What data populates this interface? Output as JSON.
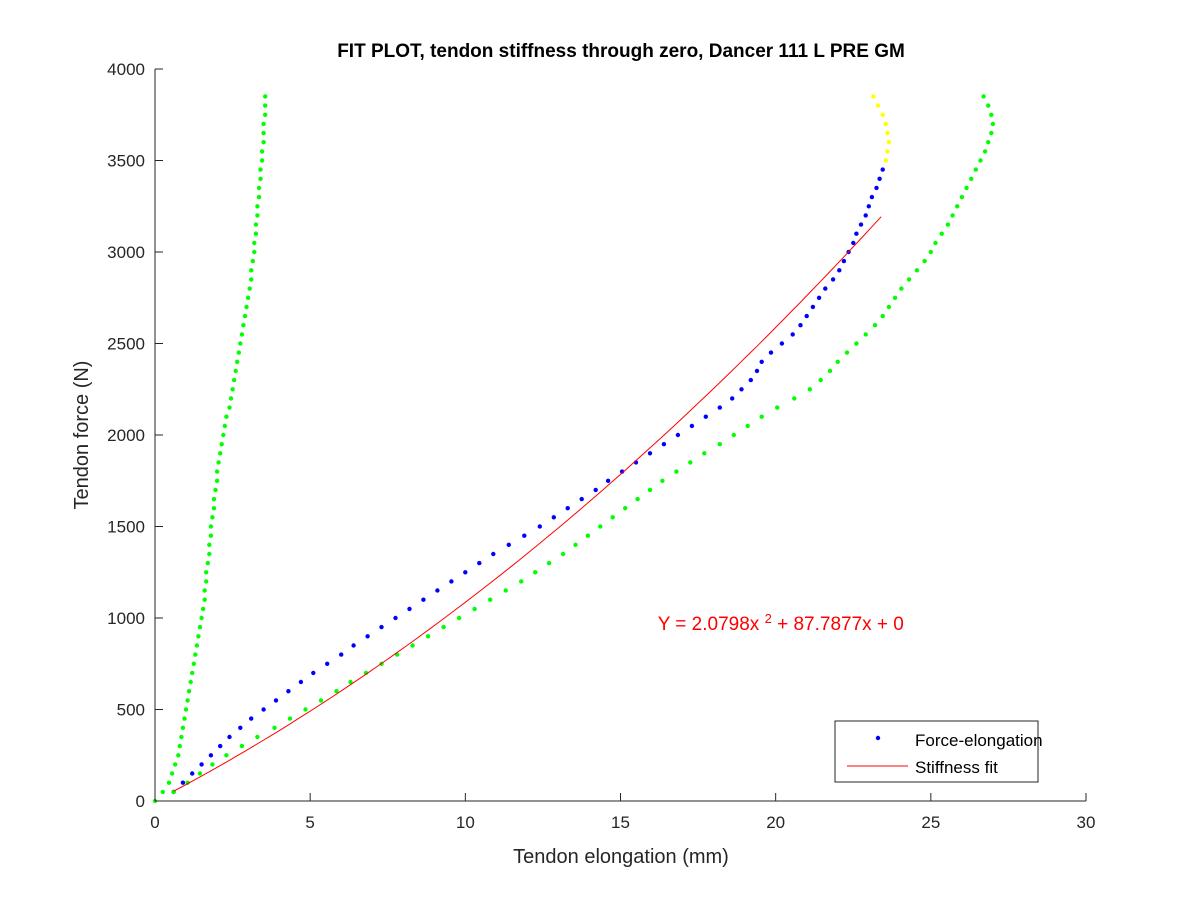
{
  "chart_data": {
    "type": "scatter",
    "title": "FIT PLOT, tendon stiffness through zero, Dancer 111 L PRE GM",
    "xlabel": "Tendon elongation (mm)",
    "ylabel": "Tendon force (N)",
    "xlim": [
      0,
      30
    ],
    "ylim": [
      0,
      4000
    ],
    "x_ticks": [
      "0",
      "5",
      "10",
      "15",
      "20",
      "25",
      "30"
    ],
    "y_ticks": [
      "0",
      "500",
      "1000",
      "1500",
      "2000",
      "2500",
      "3000",
      "3500",
      "4000"
    ],
    "grid": false,
    "legend_position": "bottom-right",
    "legend": [
      "Force-elongation",
      "Stiffness fit"
    ],
    "annotation": {
      "prefix": "Y = 2.0798x",
      "superscript": "2",
      "suffix": " + 87.7877x + 0",
      "at": [
        16.2,
        935
      ]
    },
    "fit": {
      "a": 2.0798,
      "b": 87.7877,
      "c": 0,
      "x_range": [
        0.6,
        23.4
      ]
    },
    "colors": {
      "force_elongation": "#0000ff",
      "stiffness_fit": "#ff0000",
      "annotation": "#ff0000",
      "green_series": "#00ff00",
      "yellow_series": "#ffff00"
    },
    "series": [
      {
        "name": "Force-elongation",
        "marker": "dot",
        "color": "#0000ff",
        "points": [
          [
            0.6,
            50
          ],
          [
            0.9,
            100
          ],
          [
            1.2,
            150
          ],
          [
            1.5,
            200
          ],
          [
            1.8,
            250
          ],
          [
            2.1,
            300
          ],
          [
            2.4,
            350
          ],
          [
            2.75,
            400
          ],
          [
            3.1,
            450
          ],
          [
            3.5,
            500
          ],
          [
            3.9,
            550
          ],
          [
            4.3,
            600
          ],
          [
            4.7,
            650
          ],
          [
            5.1,
            700
          ],
          [
            5.55,
            750
          ],
          [
            6.0,
            800
          ],
          [
            6.4,
            850
          ],
          [
            6.85,
            900
          ],
          [
            7.3,
            950
          ],
          [
            7.75,
            1000
          ],
          [
            8.2,
            1050
          ],
          [
            8.65,
            1100
          ],
          [
            9.1,
            1150
          ],
          [
            9.55,
            1200
          ],
          [
            10.0,
            1250
          ],
          [
            10.45,
            1300
          ],
          [
            10.9,
            1350
          ],
          [
            11.4,
            1400
          ],
          [
            11.9,
            1450
          ],
          [
            12.4,
            1500
          ],
          [
            12.85,
            1550
          ],
          [
            13.3,
            1600
          ],
          [
            13.75,
            1650
          ],
          [
            14.2,
            1700
          ],
          [
            14.6,
            1750
          ],
          [
            15.05,
            1800
          ],
          [
            15.5,
            1850
          ],
          [
            15.95,
            1900
          ],
          [
            16.4,
            1950
          ],
          [
            16.85,
            2000
          ],
          [
            17.3,
            2050
          ],
          [
            17.75,
            2100
          ],
          [
            18.2,
            2150
          ],
          [
            18.6,
            2200
          ],
          [
            18.9,
            2250
          ],
          [
            19.2,
            2300
          ],
          [
            19.4,
            2350
          ],
          [
            19.55,
            2400
          ],
          [
            19.85,
            2450
          ],
          [
            20.2,
            2500
          ],
          [
            20.55,
            2550
          ],
          [
            20.8,
            2600
          ],
          [
            21.0,
            2650
          ],
          [
            21.2,
            2700
          ],
          [
            21.4,
            2750
          ],
          [
            21.6,
            2800
          ],
          [
            21.85,
            2850
          ],
          [
            22.05,
            2900
          ],
          [
            22.2,
            2950
          ],
          [
            22.35,
            3000
          ],
          [
            22.5,
            3050
          ],
          [
            22.6,
            3100
          ],
          [
            22.75,
            3150
          ],
          [
            22.9,
            3200
          ],
          [
            23.0,
            3250
          ],
          [
            23.1,
            3300
          ],
          [
            23.25,
            3350
          ],
          [
            23.35,
            3400
          ],
          [
            23.45,
            3450
          ]
        ]
      },
      {
        "name": "",
        "marker": "dot",
        "color": "#ffff00",
        "points": [
          [
            23.55,
            3500
          ],
          [
            23.6,
            3550
          ],
          [
            23.65,
            3600
          ],
          [
            23.6,
            3650
          ],
          [
            23.55,
            3700
          ],
          [
            23.45,
            3750
          ],
          [
            23.3,
            3800
          ],
          [
            23.15,
            3850
          ]
        ]
      },
      {
        "name": "",
        "marker": "dot",
        "color": "#00ff00",
        "points": [
          [
            0.0,
            0
          ],
          [
            0.25,
            50
          ],
          [
            0.45,
            100
          ],
          [
            0.55,
            150
          ],
          [
            0.65,
            200
          ],
          [
            0.75,
            250
          ],
          [
            0.8,
            300
          ],
          [
            0.85,
            350
          ],
          [
            0.9,
            400
          ],
          [
            0.95,
            450
          ],
          [
            1.0,
            500
          ],
          [
            1.05,
            550
          ],
          [
            1.1,
            600
          ],
          [
            1.15,
            650
          ],
          [
            1.2,
            700
          ],
          [
            1.25,
            750
          ],
          [
            1.3,
            800
          ],
          [
            1.35,
            850
          ],
          [
            1.4,
            900
          ],
          [
            1.45,
            950
          ],
          [
            1.5,
            1000
          ],
          [
            1.55,
            1050
          ],
          [
            1.6,
            1100
          ],
          [
            1.6,
            1150
          ],
          [
            1.65,
            1200
          ],
          [
            1.65,
            1250
          ],
          [
            1.7,
            1300
          ],
          [
            1.75,
            1350
          ],
          [
            1.75,
            1400
          ],
          [
            1.8,
            1450
          ],
          [
            1.8,
            1500
          ],
          [
            1.85,
            1550
          ],
          [
            1.9,
            1600
          ],
          [
            1.9,
            1650
          ],
          [
            1.95,
            1700
          ],
          [
            2.0,
            1750
          ],
          [
            2.0,
            1800
          ],
          [
            2.05,
            1850
          ],
          [
            2.1,
            1900
          ],
          [
            2.15,
            1950
          ],
          [
            2.2,
            2000
          ],
          [
            2.25,
            2050
          ],
          [
            2.3,
            2100
          ],
          [
            2.4,
            2150
          ],
          [
            2.45,
            2200
          ],
          [
            2.5,
            2250
          ],
          [
            2.55,
            2300
          ],
          [
            2.6,
            2350
          ],
          [
            2.65,
            2400
          ],
          [
            2.7,
            2450
          ],
          [
            2.75,
            2500
          ],
          [
            2.8,
            2550
          ],
          [
            2.85,
            2600
          ],
          [
            2.9,
            2650
          ],
          [
            2.95,
            2700
          ],
          [
            3.0,
            2750
          ],
          [
            3.05,
            2800
          ],
          [
            3.1,
            2850
          ],
          [
            3.1,
            2900
          ],
          [
            3.15,
            2950
          ],
          [
            3.2,
            3000
          ],
          [
            3.2,
            3050
          ],
          [
            3.25,
            3100
          ],
          [
            3.25,
            3150
          ],
          [
            3.3,
            3200
          ],
          [
            3.3,
            3250
          ],
          [
            3.35,
            3300
          ],
          [
            3.35,
            3350
          ],
          [
            3.4,
            3400
          ],
          [
            3.4,
            3450
          ],
          [
            3.45,
            3500
          ],
          [
            3.45,
            3550
          ],
          [
            3.5,
            3600
          ],
          [
            3.5,
            3650
          ],
          [
            3.5,
            3700
          ],
          [
            3.55,
            3750
          ],
          [
            3.55,
            3800
          ],
          [
            3.55,
            3850
          ]
        ]
      },
      {
        "name": "",
        "marker": "dot",
        "color": "#00ff00",
        "points": [
          [
            0.6,
            50
          ],
          [
            1.05,
            100
          ],
          [
            1.45,
            150
          ],
          [
            1.85,
            200
          ],
          [
            2.3,
            250
          ],
          [
            2.8,
            300
          ],
          [
            3.3,
            350
          ],
          [
            3.85,
            400
          ],
          [
            4.35,
            450
          ],
          [
            4.85,
            500
          ],
          [
            5.35,
            550
          ],
          [
            5.85,
            600
          ],
          [
            6.3,
            650
          ],
          [
            6.8,
            700
          ],
          [
            7.3,
            750
          ],
          [
            7.8,
            800
          ],
          [
            8.3,
            850
          ],
          [
            8.8,
            900
          ],
          [
            9.3,
            950
          ],
          [
            9.8,
            1000
          ],
          [
            10.3,
            1050
          ],
          [
            10.8,
            1100
          ],
          [
            11.3,
            1150
          ],
          [
            11.8,
            1200
          ],
          [
            12.25,
            1250
          ],
          [
            12.7,
            1300
          ],
          [
            13.15,
            1350
          ],
          [
            13.55,
            1400
          ],
          [
            13.95,
            1450
          ],
          [
            14.35,
            1500
          ],
          [
            14.75,
            1550
          ],
          [
            15.15,
            1600
          ],
          [
            15.55,
            1650
          ],
          [
            15.95,
            1700
          ],
          [
            16.35,
            1750
          ],
          [
            16.8,
            1800
          ],
          [
            17.25,
            1850
          ],
          [
            17.7,
            1900
          ],
          [
            18.2,
            1950
          ],
          [
            18.65,
            2000
          ],
          [
            19.1,
            2050
          ],
          [
            19.55,
            2100
          ],
          [
            20.05,
            2150
          ],
          [
            20.6,
            2200
          ],
          [
            21.1,
            2250
          ],
          [
            21.45,
            2300
          ],
          [
            21.75,
            2350
          ],
          [
            22.0,
            2400
          ],
          [
            22.3,
            2450
          ],
          [
            22.6,
            2500
          ],
          [
            22.9,
            2550
          ],
          [
            23.2,
            2600
          ],
          [
            23.45,
            2650
          ],
          [
            23.65,
            2700
          ],
          [
            23.85,
            2750
          ],
          [
            24.05,
            2800
          ],
          [
            24.3,
            2850
          ],
          [
            24.55,
            2900
          ],
          [
            24.8,
            2950
          ],
          [
            25.0,
            3000
          ],
          [
            25.15,
            3050
          ],
          [
            25.35,
            3100
          ],
          [
            25.55,
            3150
          ],
          [
            25.7,
            3200
          ],
          [
            25.85,
            3250
          ],
          [
            26.0,
            3300
          ],
          [
            26.15,
            3350
          ],
          [
            26.3,
            3400
          ],
          [
            26.45,
            3450
          ],
          [
            26.6,
            3500
          ],
          [
            26.75,
            3550
          ],
          [
            26.85,
            3600
          ],
          [
            26.95,
            3650
          ],
          [
            27.0,
            3700
          ],
          [
            26.95,
            3750
          ],
          [
            26.85,
            3800
          ],
          [
            26.7,
            3850
          ]
        ]
      }
    ]
  }
}
